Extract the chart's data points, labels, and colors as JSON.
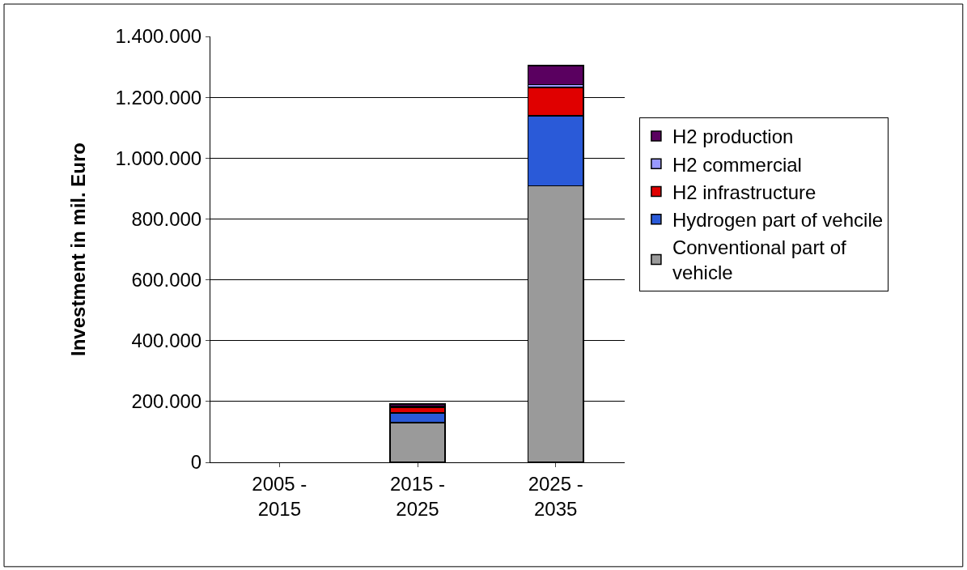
{
  "chart_data": {
    "type": "bar",
    "stacked": true,
    "ylabel": "Investment in mil. Euro",
    "categories": [
      "2005 - 2015",
      "2015 - 2025",
      "2025 - 2035"
    ],
    "series": [
      {
        "name": "Conventional part of vehicle",
        "color": "#9a9a9a",
        "values": [
          null,
          131000,
          909000
        ]
      },
      {
        "name": "Hydrogen part of vehcile",
        "color": "#2a5ad8",
        "values": [
          null,
          32000,
          230000
        ]
      },
      {
        "name": "H2 infrastructure",
        "color": "#e00000",
        "values": [
          null,
          18000,
          93000
        ]
      },
      {
        "name": "H2 commercial",
        "color": "#9999ff",
        "values": [
          null,
          2000,
          10000
        ]
      },
      {
        "name": "H2 production",
        "color": "#5a0060",
        "values": [
          null,
          9000,
          62000
        ]
      }
    ],
    "ylim": [
      0,
      1400000
    ],
    "yticks": [
      {
        "value": 0,
        "label": "0"
      },
      {
        "value": 200000,
        "label": "200.000"
      },
      {
        "value": 400000,
        "label": "400.000"
      },
      {
        "value": 600000,
        "label": "600.000"
      },
      {
        "value": 800000,
        "label": "800.000"
      },
      {
        "value": 1000000,
        "label": "1.000.000"
      },
      {
        "value": 1200000,
        "label": "1.200.000"
      },
      {
        "value": 1400000,
        "label": "1.400.000"
      }
    ],
    "grid": "y",
    "legend": "right"
  }
}
